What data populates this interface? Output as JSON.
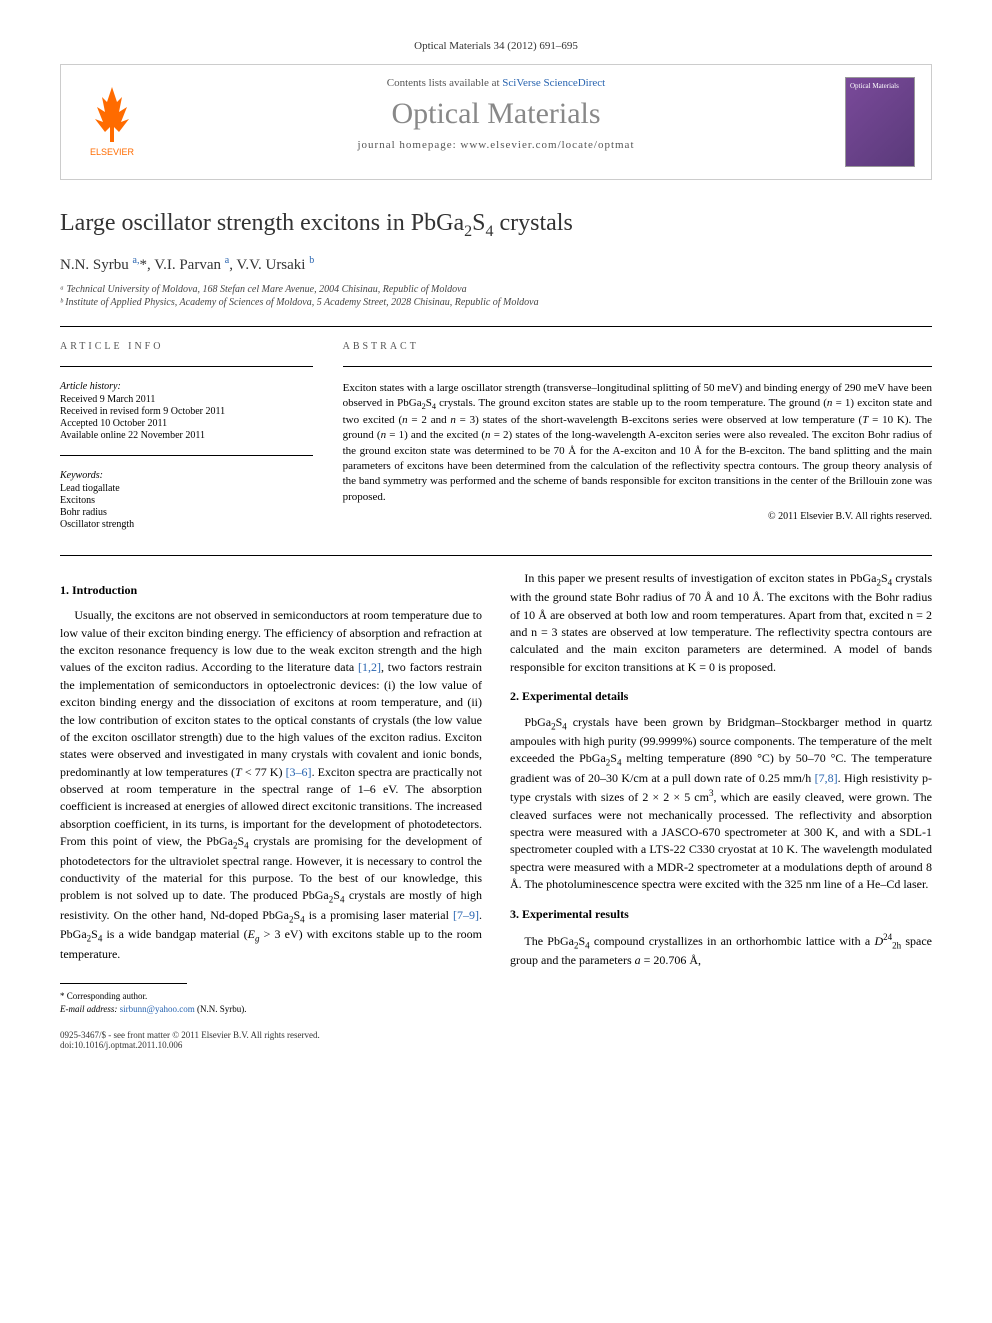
{
  "citation": "Optical Materials 34 (2012) 691–695",
  "header": {
    "contents_prefix": "Contents lists available at ",
    "contents_link": "SciVerse ScienceDirect",
    "journal_name": "Optical Materials",
    "homepage_prefix": "journal homepage: ",
    "homepage_url": "www.elsevier.com/locate/optmat",
    "cover_label": "Optical Materials"
  },
  "title_html": "Large oscillator strength excitons in PbGa<sub>2</sub>S<sub>4</sub> crystals",
  "authors_html": "N.N. Syrbu <sup>a,</sup>*, V.I. Parvan <sup>a</sup>, V.V. Ursaki <sup>b</sup>",
  "affiliations": [
    "ᵃ Technical University of Moldova, 168 Stefan cel Mare Avenue, 2004 Chisinau, Republic of Moldova",
    "ᵇ Institute of Applied Physics, Academy of Sciences of Moldova, 5 Academy Street, 2028 Chisinau, Republic of Moldova"
  ],
  "article_info": {
    "heading": "ARTICLE INFO",
    "history_head": "Article history:",
    "history": [
      "Received 9 March 2011",
      "Received in revised form 9 October 2011",
      "Accepted 10 October 2011",
      "Available online 22 November 2011"
    ],
    "keywords_head": "Keywords:",
    "keywords": [
      "Lead tiogallate",
      "Excitons",
      "Bohr radius",
      "Oscillator strength"
    ]
  },
  "abstract": {
    "heading": "ABSTRACT",
    "text_html": "Exciton states with a large oscillator strength (transverse–longitudinal splitting of 50 meV) and binding energy of 290 meV have been observed in PbGa<sub>2</sub>S<sub>4</sub> crystals. The ground exciton states are stable up to the room temperature. The ground (<i>n</i> = 1) exciton state and two excited (<i>n</i> = 2 and <i>n</i> = 3) states of the short-wavelength B-excitons series were observed at low temperature (<i>T</i> = 10 K). The ground (<i>n</i> = 1) and the excited (<i>n</i> = 2) states of the long-wavelength A-exciton series were also revealed. The exciton Bohr radius of the ground exciton state was determined to be 70 Å for the A-exciton and 10 Å for the B-exciton. The band splitting and the main parameters of excitons have been determined from the calculation of the reflectivity spectra contours. The group theory analysis of the band symmetry was performed and the scheme of bands responsible for exciton transitions in the center of the Brillouin zone was proposed.",
    "copyright": "© 2011 Elsevier B.V. All rights reserved."
  },
  "sections": {
    "s1_head": "1. Introduction",
    "s1_p1_html": "Usually, the excitons are not observed in semiconductors at room temperature due to low value of their exciton binding energy. The efficiency of absorption and refraction at the exciton resonance frequency is low due to the weak exciton strength and the high values of the exciton radius. According to the literature data <span class=\"ref-link\">[1,2]</span>, two factors restrain the implementation of semiconductors in optoelectronic devices: (i) the low value of exciton binding energy and the dissociation of excitons at room temperature, and (ii) the low contribution of exciton states to the optical constants of crystals (the low value of the exciton oscillator strength) due to the high values of the exciton radius. Exciton states were observed and investigated in many crystals with covalent and ionic bonds, predominantly at low temperatures (<i>T</i> < 77 K) <span class=\"ref-link\">[3–6]</span>. Exciton spectra are practically not observed at room temperature in the spectral range of 1–6 eV. The absorption coefficient is increased at energies of allowed direct excitonic transitions. The increased absorption coefficient, in its turns, is important for the development of photodetectors. From this point of view, the PbGa<sub>2</sub>S<sub>4</sub> crystals are promising for the development of photodetectors for the ultraviolet spectral range. However, it is necessary to control the conductivity of the material for this purpose. To the best of our knowledge, this problem is not solved up to date. The produced PbGa<sub>2</sub>S<sub>4</sub> crystals are mostly of high resistivity. On the other hand, Nd-doped PbGa<sub>2</sub>S<sub>4</sub> is a promising laser material <span class=\"ref-link\">[7–9]</span>. PbGa<sub>2</sub>S<sub>4</sub> is a wide bandgap material (<i>E<sub>g</sub></i> > 3 eV) with excitons stable up to the room temperature.",
    "s1_p2_html": "In this paper we present results of investigation of exciton states in PbGa<sub>2</sub>S<sub>4</sub> crystals with the ground state Bohr radius of 70 Å and 10 Å. The excitons with the Bohr radius of 10 Å are observed at both low and room temperatures. Apart from that, excited n = 2 and n = 3 states are observed at low temperature. The reflectivity spectra contours are calculated and the main exciton parameters are determined. A model of bands responsible for exciton transitions at K = 0 is proposed.",
    "s2_head": "2. Experimental details",
    "s2_p1_html": "PbGa<sub>2</sub>S<sub>4</sub> crystals have been grown by Bridgman–Stockbarger method in quartz ampoules with high purity (99.9999%) source components. The temperature of the melt exceeded the PbGa<sub>2</sub>S<sub>4</sub> melting temperature (890 °C) by 50–70 °C. The temperature gradient was of 20–30 K/cm at a pull down rate of 0.25 mm/h <span class=\"ref-link\">[7,8]</span>. High resistivity p-type crystals with sizes of 2 × 2 × 5 cm<sup>3</sup>, which are easily cleaved, were grown. The cleaved surfaces were not mechanically processed. The reflectivity and absorption spectra were measured with a JASCO-670 spectrometer at 300 K, and with a SDL-1 spectrometer coupled with a LTS-22 C330 cryostat at 10 K. The wavelength modulated spectra were measured with a MDR-2 spectrometer at a modulations depth of around 8 Å. The photoluminescence spectra were excited with the 325 nm line of a He–Cd laser.",
    "s3_head": "3. Experimental results",
    "s3_p1_html": "The PbGa<sub>2</sub>S<sub>4</sub> compound crystallizes in an orthorhombic lattice with a <i>D</i><sup>24</sup><sub>2h</sub> space group and the parameters <i>a</i> = 20.706 Å,"
  },
  "footnote": {
    "corr_label": "* Corresponding author.",
    "email_label": "E-mail address: ",
    "email": "sirbunn@yahoo.com",
    "email_suffix": " (N.N. Syrbu)."
  },
  "bottom": {
    "issn_line": "0925-3467/$ - see front matter © 2011 Elsevier B.V. All rights reserved.",
    "doi_line": "doi:10.1016/j.optmat.2011.10.006"
  },
  "colors": {
    "link": "#2864b0",
    "orange": "#ff6b00",
    "gray_text": "#888"
  }
}
